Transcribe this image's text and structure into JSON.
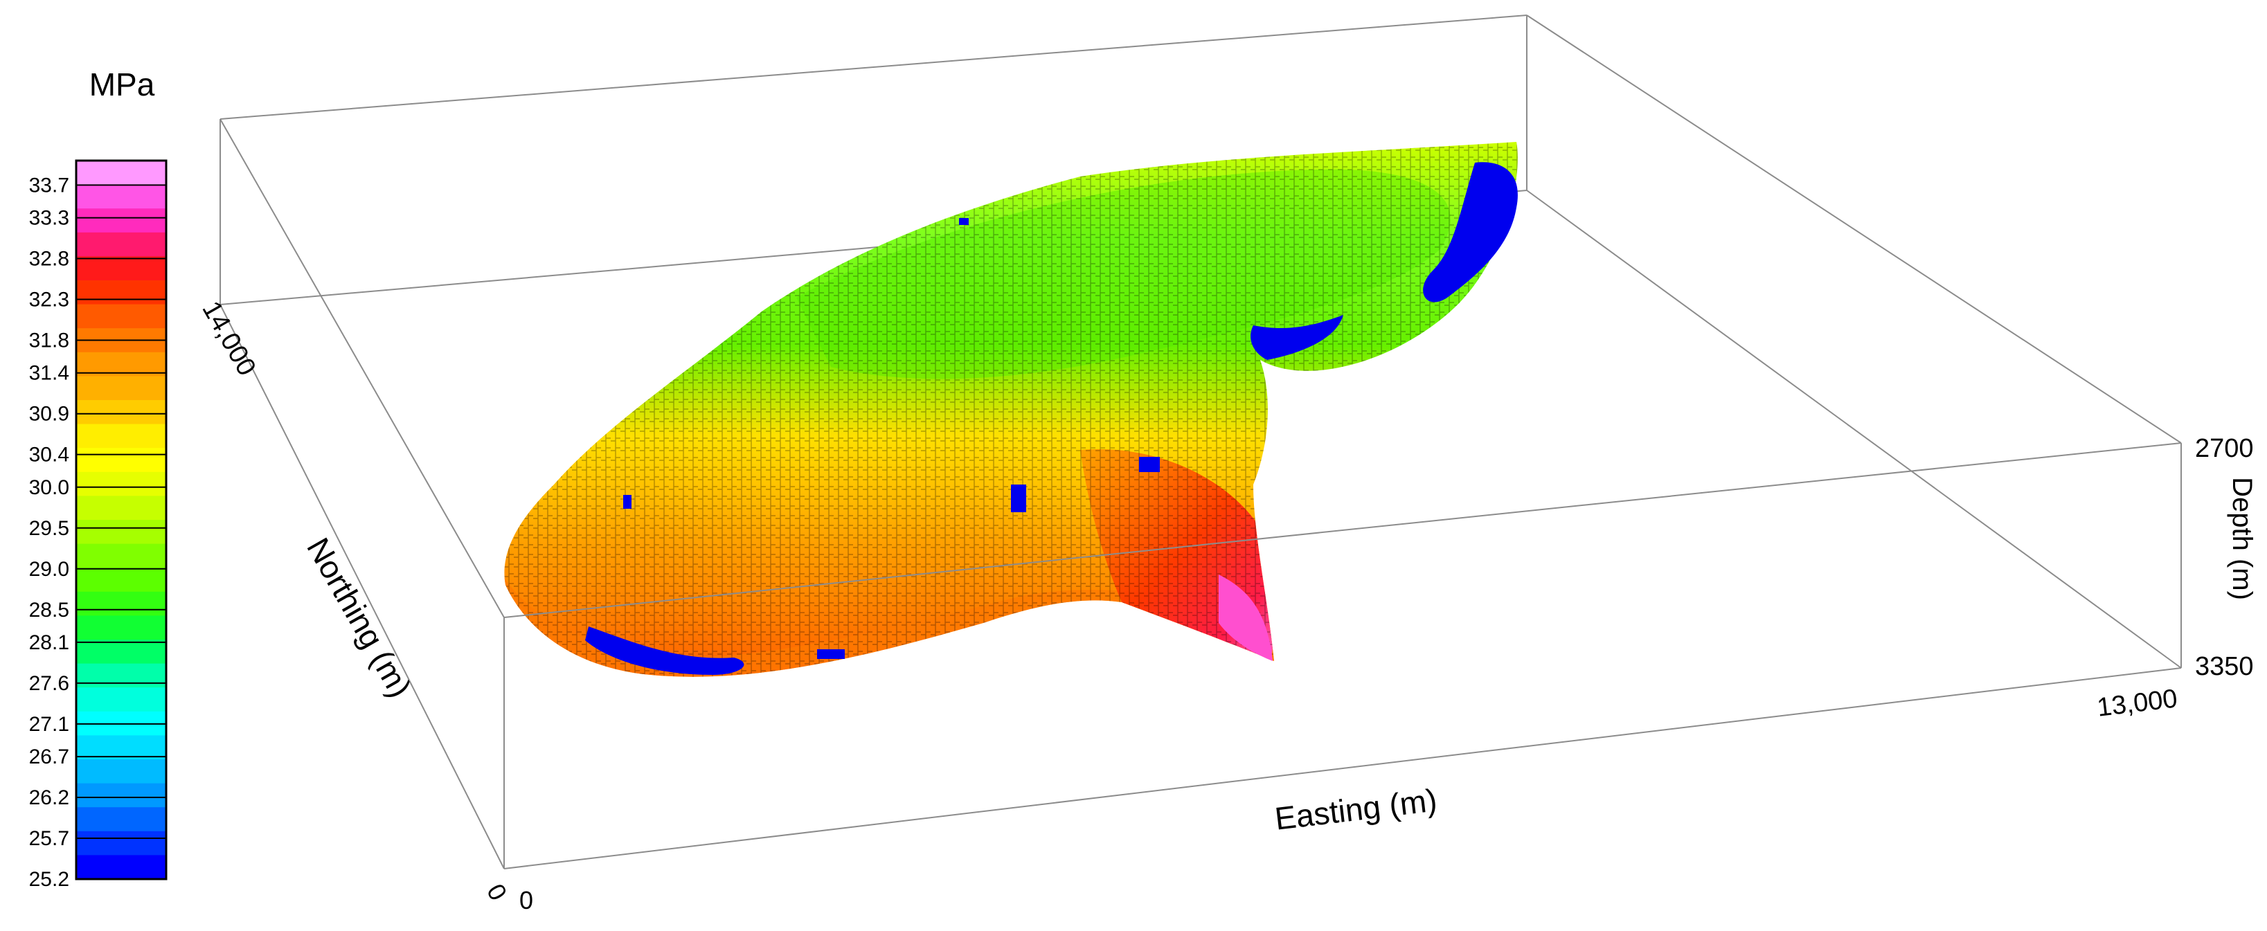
{
  "chart_data": {
    "type": "heatmap",
    "subtype": "3d-voxel-block-model",
    "colorbar": {
      "title": "MPa",
      "tick_labels": [
        "33.7",
        "33.3",
        "32.8",
        "32.3",
        "31.8",
        "31.4",
        "30.9",
        "30.4",
        "30.0",
        "29.5",
        "29.0",
        "28.5",
        "28.1",
        "27.6",
        "27.1",
        "26.7",
        "26.2",
        "25.7",
        "25.2"
      ],
      "range": [
        25.2,
        34.0
      ],
      "colors": [
        "#ff99ff",
        "#ff55e6",
        "#ff2bbd",
        "#ff1a6e",
        "#ff1a1a",
        "#ff3300",
        "#ff5a00",
        "#ff7a00",
        "#ff9a00",
        "#ffb000",
        "#ffcc00",
        "#ffee00",
        "#ffff00",
        "#e6ff00",
        "#c6ff00",
        "#a6ff00",
        "#80ff00",
        "#5cff00",
        "#33ff11",
        "#11ff33",
        "#00ff66",
        "#00ffaa",
        "#00ffdd",
        "#00ffff",
        "#00ddff",
        "#00bbff",
        "#0099ff",
        "#0066ff",
        "#0033ff",
        "#0000ff"
      ]
    },
    "axes": {
      "easting": {
        "label": "Easting (m)",
        "range": [
          0,
          13000
        ],
        "tick_labels": [
          "0",
          "13,000"
        ]
      },
      "northing": {
        "label": "Northing (m)",
        "range": [
          0,
          14000
        ],
        "tick_labels": [
          "0",
          "14,000"
        ]
      },
      "depth": {
        "label": "Depth (m)",
        "range": [
          2700,
          3350
        ],
        "tick_labels": [
          "2700",
          "3350"
        ]
      }
    },
    "grid": false,
    "legend": "left",
    "value_pattern": {
      "summary": "Stress decreases toward the top of the body and increases toward its lower edges and south-eastern lobe",
      "ridge_crest_min": 28.5,
      "flank_typical": 30.9,
      "lower_edge_max": 32.8,
      "lobe_tip_max": 33.7,
      "outlier_low": 25.2
    }
  }
}
